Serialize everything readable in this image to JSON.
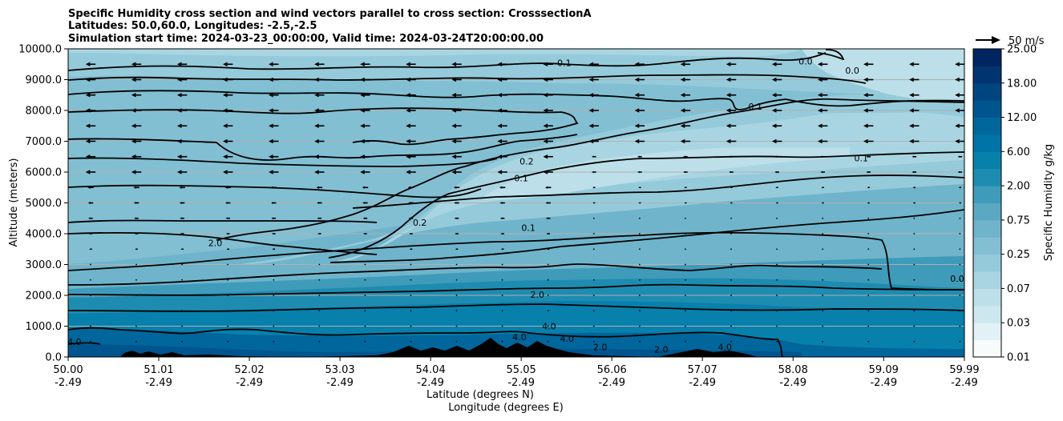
{
  "chart_data": {
    "type": "heatmap",
    "title": [
      "Specific Humidity cross section and wind vectors parallel to cross section: CrosssectionA",
      "Latitudes: 50.0,60.0, Longitudes: -2.5,-2.5",
      "Simulation start time: 2024-03-23_00:00:00, Valid time: 2024-03-24T20:00:00.00"
    ],
    "xlabel_lat": "Latitude (degrees N)",
    "xlabel_lon": "Longitude (degrees E)",
    "ylabel": "Altitude (meters)",
    "xlim": [
      50.0,
      59.99
    ],
    "ylim": [
      0,
      10000
    ],
    "x_ticks": [
      {
        "lat": "50.00",
        "lon": "-2.49",
        "v": 50.0
      },
      {
        "lat": "51.01",
        "lon": "-2.49",
        "v": 51.01
      },
      {
        "lat": "52.02",
        "lon": "-2.49",
        "v": 52.02
      },
      {
        "lat": "53.03",
        "lon": "-2.49",
        "v": 53.03
      },
      {
        "lat": "54.04",
        "lon": "-2.49",
        "v": 54.04
      },
      {
        "lat": "55.05",
        "lon": "-2.49",
        "v": 55.05
      },
      {
        "lat": "56.06",
        "lon": "-2.49",
        "v": 56.06
      },
      {
        "lat": "57.07",
        "lon": "-2.49",
        "v": 57.07
      },
      {
        "lat": "58.08",
        "lon": "-2.49",
        "v": 58.08
      },
      {
        "lat": "59.09",
        "lon": "-2.49",
        "v": 59.09
      },
      {
        "lat": "59.99",
        "lon": "-2.49",
        "v": 59.99
      }
    ],
    "y_ticks": [
      {
        "label": "0.0",
        "v": 0
      },
      {
        "label": "1000.0",
        "v": 1000
      },
      {
        "label": "2000.0",
        "v": 2000
      },
      {
        "label": "3000.0",
        "v": 3000
      },
      {
        "label": "4000.0",
        "v": 4000
      },
      {
        "label": "5000.0",
        "v": 5000
      },
      {
        "label": "6000.0",
        "v": 6000
      },
      {
        "label": "7000.0",
        "v": 7000
      },
      {
        "label": "8000.0",
        "v": 8000
      },
      {
        "label": "9000.0",
        "v": 9000
      },
      {
        "label": "10000.0",
        "v": 10000
      }
    ],
    "grid": "horizontal",
    "colorbar": {
      "label": "Specific Humidity g/kg",
      "tick_labels": [
        "0.01",
        "0.03",
        "0.07",
        "0.25",
        "0.75",
        "2.00",
        "6.00",
        "12.00",
        "18.00",
        "25.00"
      ],
      "levels": [
        0.01,
        0.02,
        0.03,
        0.05,
        0.07,
        0.1,
        0.25,
        0.5,
        0.75,
        1.0,
        2.0,
        4.0,
        6.0,
        9.0,
        12.0,
        15.0,
        18.0,
        22.0,
        25.0
      ],
      "colors": [
        "#f7fbfc",
        "#e2f1f5",
        "#cde7ee",
        "#bcdfe9",
        "#a9d5e2",
        "#95cada",
        "#82bfd3",
        "#6fb4cb",
        "#5aa8c2",
        "#3f9bba",
        "#1e8cb0",
        "#0780ac",
        "#0074a6",
        "#00669c",
        "#00558f",
        "#004580",
        "#003470",
        "#002662"
      ]
    },
    "quiver_key": {
      "label": "50 m/s",
      "value": 50
    },
    "wind": {
      "direction": "toward south (left)",
      "upper_speed_ms": 20,
      "lower_speed_ms": 4
    },
    "contour_labels": [
      {
        "text": "0.1",
        "x": 55.53,
        "y": 9550
      },
      {
        "text": "0.0",
        "x": 58.22,
        "y": 9600
      },
      {
        "text": "0.0",
        "x": 58.74,
        "y": 9300
      },
      {
        "text": "0.1",
        "x": 57.66,
        "y": 8130
      },
      {
        "text": "0.1",
        "x": 58.84,
        "y": 6450
      },
      {
        "text": "0.2",
        "x": 55.11,
        "y": 6350
      },
      {
        "text": "0.1",
        "x": 55.05,
        "y": 5800
      },
      {
        "text": "0.2",
        "x": 53.92,
        "y": 4370
      },
      {
        "text": "0.1",
        "x": 55.13,
        "y": 4200
      },
      {
        "text": "2.0",
        "x": 51.64,
        "y": 3700
      },
      {
        "text": "0.0",
        "x": 59.91,
        "y": 2550
      },
      {
        "text": "2.0",
        "x": 55.23,
        "y": 2030
      },
      {
        "text": "4.0",
        "x": 55.36,
        "y": 1000
      },
      {
        "text": "4.0",
        "x": 55.56,
        "y": 600
      },
      {
        "text": "4.0",
        "x": 55.03,
        "y": 650
      },
      {
        "text": "2.0",
        "x": 55.93,
        "y": 320
      },
      {
        "text": "2.0",
        "x": 56.61,
        "y": 250
      },
      {
        "text": "4.0",
        "x": 57.32,
        "y": 330
      },
      {
        "text": "4.0",
        "x": 50.07,
        "y": 500
      }
    ]
  }
}
